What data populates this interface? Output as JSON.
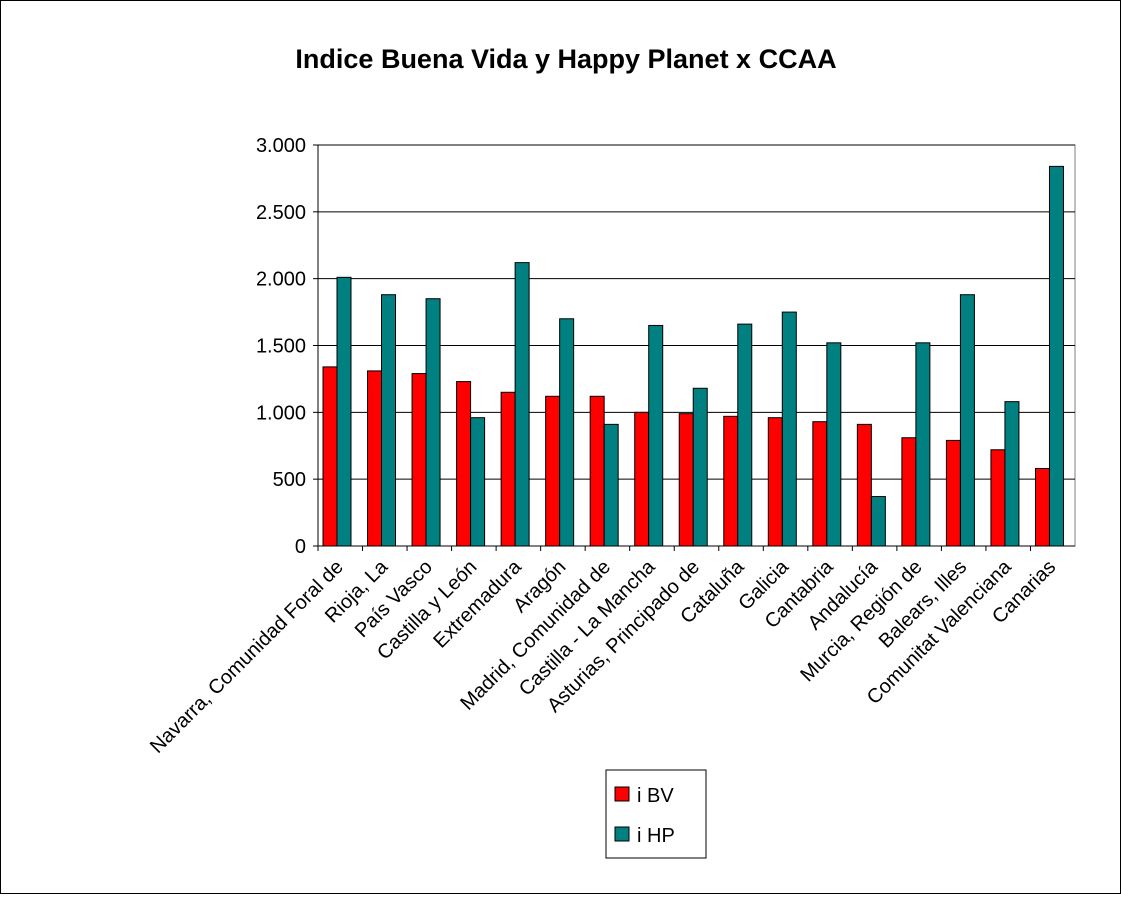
{
  "chart_data": {
    "type": "bar",
    "title": "Indice Buena Vida y Happy Planet x CCAA",
    "categories": [
      "Navarra, Comunidad Foral de",
      "Rioja, La",
      "País Vasco",
      "Castilla y León",
      "Extremadura",
      "Aragón",
      "Madrid, Comunidad de",
      "Castilla - La Mancha",
      "Asturias, Principado de",
      "Cataluña",
      "Galicia",
      "Cantabria",
      "Andalucía",
      "Murcia, Región de",
      "Balears, Illes",
      "Comunitat Valenciana",
      "Canarias"
    ],
    "series": [
      {
        "name": "i BV",
        "color": "#ff0000",
        "values": [
          1340,
          1310,
          1290,
          1230,
          1150,
          1120,
          1120,
          1000,
          990,
          970,
          960,
          930,
          910,
          810,
          790,
          720,
          580
        ]
      },
      {
        "name": "i HP",
        "color": "#008080",
        "values": [
          2010,
          1880,
          1850,
          960,
          2120,
          1700,
          910,
          1650,
          1180,
          1660,
          1750,
          1520,
          370,
          1520,
          1880,
          1080,
          2840
        ]
      }
    ],
    "ylim": [
      0,
      3000
    ],
    "yticks": [
      0,
      500,
      {
        "value": 1000,
        "label": "1.000"
      },
      {
        "value": 1500,
        "label": "1.500"
      },
      {
        "value": 2000,
        "label": "2.000"
      },
      {
        "value": 2500,
        "label": "2.500"
      },
      {
        "value": 3000,
        "label": "3.000"
      }
    ],
    "grid": true,
    "legend": "bottom"
  }
}
